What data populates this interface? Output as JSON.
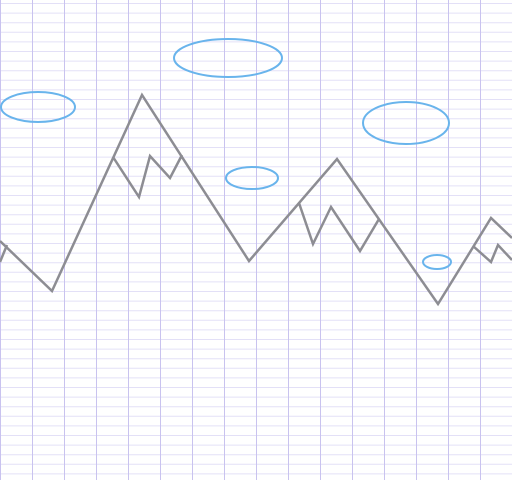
{
  "theme": {
    "paper_background": "#ffffff",
    "grid_minor_color": "#e3e0f7",
    "grid_major_color": "#c9c3ef",
    "mountain_color": "#8d8d93",
    "cloud_color": "#69b4ec"
  },
  "scene": {
    "elements": [
      "graph-paper-grid",
      "mountain-range-outline",
      "snow-cap-lines",
      "clouds"
    ]
  }
}
